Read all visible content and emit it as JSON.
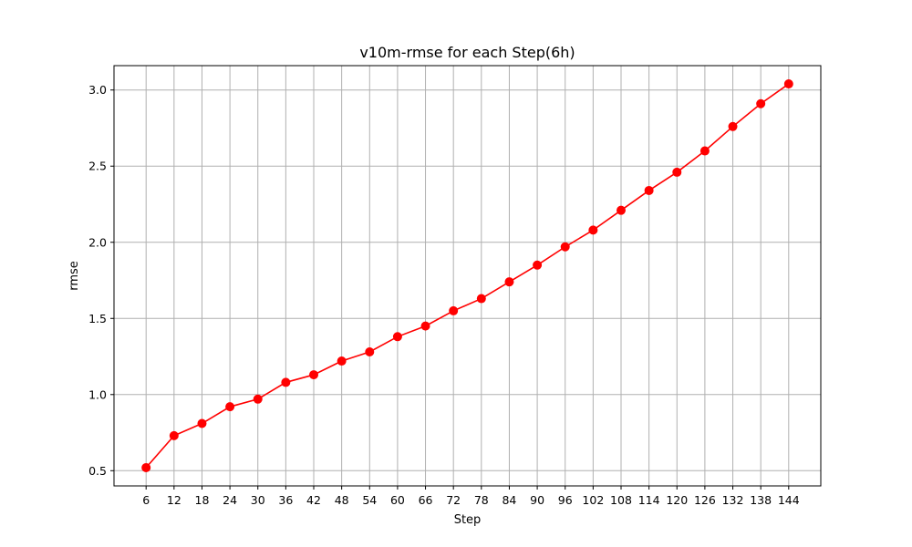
{
  "chart_data": {
    "type": "line",
    "title": "v10m-rmse for each Step(6h)",
    "xlabel": "Step",
    "ylabel": "rmse",
    "categories": [
      "6",
      "12",
      "18",
      "24",
      "30",
      "36",
      "42",
      "48",
      "54",
      "60",
      "66",
      "72",
      "78",
      "84",
      "90",
      "96",
      "102",
      "108",
      "114",
      "120",
      "126",
      "132",
      "138",
      "144"
    ],
    "series": [
      {
        "values": [
          0.52,
          0.73,
          0.81,
          0.92,
          0.97,
          1.08,
          1.13,
          1.22,
          1.28,
          1.38,
          1.45,
          1.55,
          1.63,
          1.74,
          1.85,
          1.97,
          2.08,
          2.21,
          2.34,
          2.46,
          2.6,
          2.76,
          2.91,
          3.04
        ],
        "color": "#ff0000",
        "marker": "circle"
      }
    ],
    "ylim": [
      0.4,
      3.16
    ],
    "yticks": [
      "0.5",
      "1.0",
      "1.5",
      "2.0",
      "2.5",
      "3.0"
    ],
    "grid": true,
    "legend": "none"
  }
}
